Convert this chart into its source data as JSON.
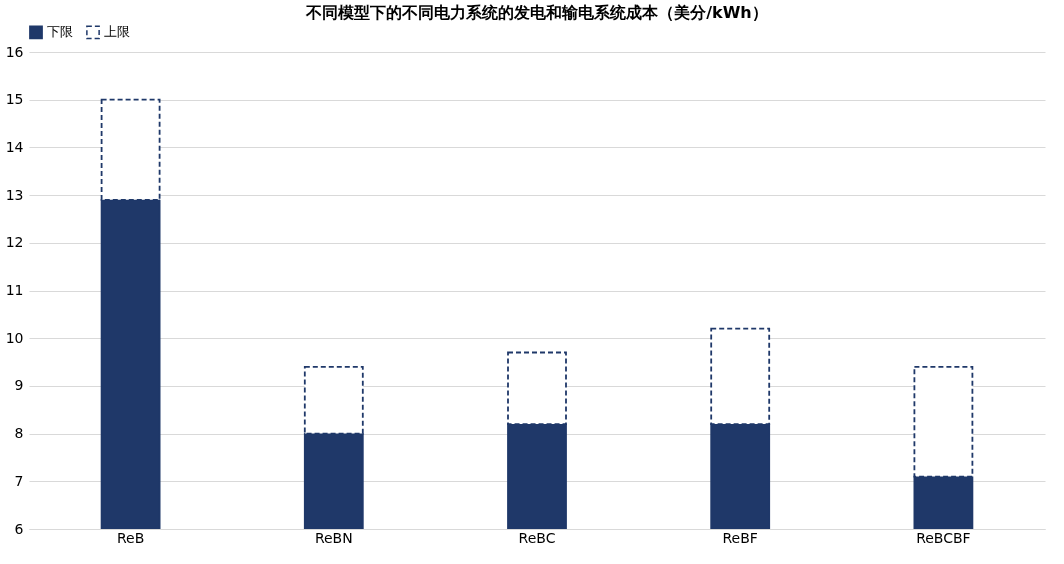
{
  "chart_data": {
    "type": "bar",
    "title": "不同模型下的不同电力系统的发电和输电系统成本（美分/kWh）",
    "categories": [
      "ReB",
      "ReBN",
      "ReBC",
      "ReBF",
      "ReBCBF"
    ],
    "stacked": true,
    "series": [
      {
        "name": "下限",
        "color": "#1f3869",
        "values": [
          12.9,
          8.0,
          8.2,
          8.2,
          7.1
        ]
      },
      {
        "name": "上限",
        "color": "#1f3869",
        "line_style": "dashed",
        "base": [
          12.9,
          8.0,
          8.2,
          8.2,
          7.1
        ],
        "values": [
          2.1,
          1.4,
          1.5,
          2.0,
          2.3
        ]
      }
    ],
    "ylim": [
      6,
      16
    ],
    "yticks": [
      6,
      7,
      8,
      9,
      10,
      11,
      12,
      13,
      14,
      15,
      16
    ],
    "grid": "y",
    "legend": "top"
  }
}
